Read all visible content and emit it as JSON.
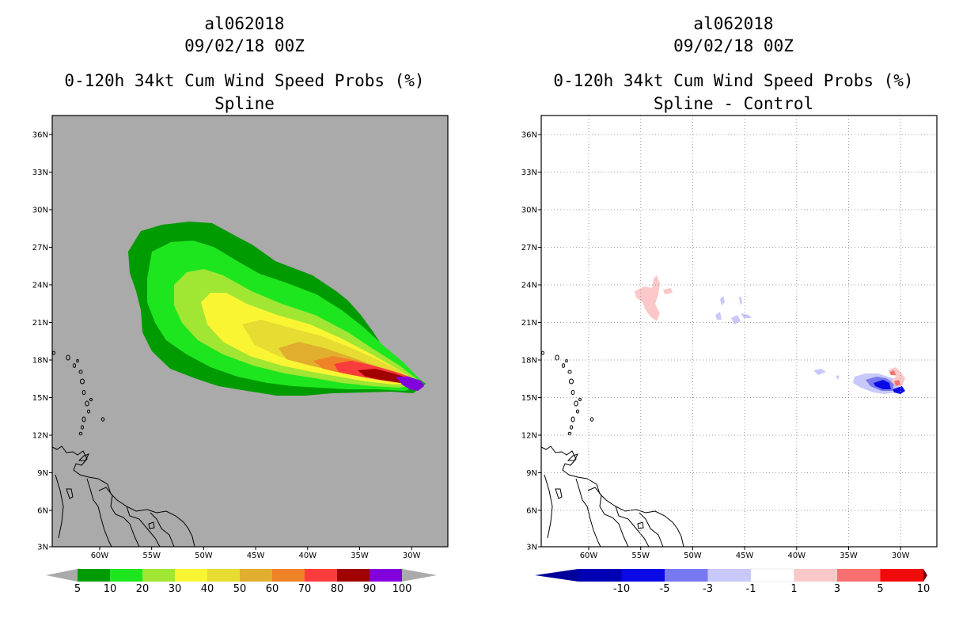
{
  "left": {
    "title_line1": "al062018",
    "title_line2": "09/02/18 00Z",
    "title_line3": "0-120h 34kt Cum Wind Speed Probs (%)",
    "title_line4": "Spline",
    "lat_labels": [
      "36N",
      "33N",
      "30N",
      "27N",
      "24N",
      "21N",
      "18N",
      "15N",
      "12N",
      "9N",
      "6N",
      "3N"
    ],
    "lon_labels": [
      "60W",
      "55W",
      "50W",
      "45W",
      "40W",
      "35W",
      "30W"
    ],
    "colorbar_labels": [
      "5",
      "10",
      "20",
      "30",
      "40",
      "50",
      "60",
      "70",
      "80",
      "90",
      "100"
    ],
    "colorbar_colors": [
      "#009b00",
      "#1ee61e",
      "#a0e632",
      "#faf532",
      "#e6dc32",
      "#e1af2d",
      "#f08228",
      "#fa3c3c",
      "#a00000",
      "#8200dc"
    ],
    "background_color": "#aaaaaa"
  },
  "right": {
    "title_line1": "al062018",
    "title_line2": "09/02/18 00Z",
    "title_line3": "0-120h 34kt Cum Wind Speed Probs (%)",
    "title_line4": "Spline - Control",
    "lat_labels": [
      "36N",
      "33N",
      "30N",
      "27N",
      "24N",
      "21N",
      "18N",
      "15N",
      "12N",
      "9N",
      "6N",
      "3N"
    ],
    "lon_labels": [
      "60W",
      "55W",
      "50W",
      "45W",
      "40W",
      "35W",
      "30W"
    ],
    "colorbar_labels": [
      "-10",
      "-5",
      "-3",
      "-1",
      "1",
      "3",
      "5",
      "10"
    ],
    "colorbar_colors": [
      "#0000b4",
      "#0a0ae6",
      "#7878f0",
      "#c8c8fa",
      "#ffffff",
      "#fac8c8",
      "#f87070",
      "#f00a0a"
    ],
    "end_colors": [
      "#00009b",
      "#780000"
    ]
  }
}
